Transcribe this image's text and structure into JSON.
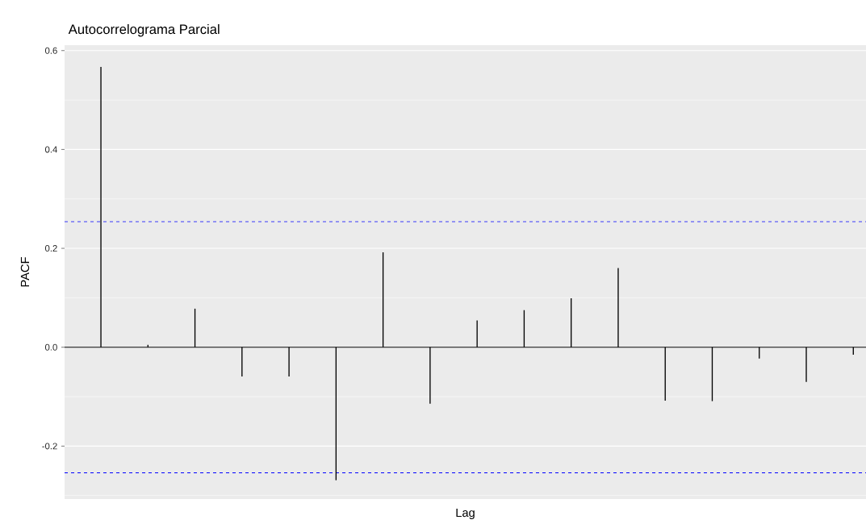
{
  "chart_data": {
    "type": "bar",
    "title": "Autocorrelograma Parcial",
    "xlabel": "Lag",
    "ylabel": "PACF",
    "categories": [
      null,
      null,
      null,
      null,
      null,
      null,
      null,
      null,
      null,
      null,
      null,
      null,
      null,
      null,
      null,
      null,
      null
    ],
    "values": [
      0.567,
      0.005,
      0.078,
      -0.059,
      -0.059,
      -0.269,
      0.192,
      -0.114,
      0.054,
      0.075,
      0.099,
      0.16,
      -0.108,
      -0.109,
      -0.023,
      -0.07,
      -0.015
    ],
    "color": "#000000",
    "ylim": [
      -0.307,
      0.611
    ],
    "yticks": [
      -0.2,
      {
        "value": 0,
        "label": "0.0"
      },
      0.2,
      0.4,
      0.6
    ],
    "grid": "y",
    "ref_lines": [
      {
        "axis": "y",
        "value": 0,
        "color": "#000000",
        "line_style": "solid"
      },
      {
        "axis": "y",
        "value": 0.254,
        "color": "#0000ff",
        "line_style": "dashed"
      },
      {
        "axis": "y",
        "value": -0.254,
        "color": "#0000ff",
        "line_style": "dashed"
      }
    ]
  }
}
